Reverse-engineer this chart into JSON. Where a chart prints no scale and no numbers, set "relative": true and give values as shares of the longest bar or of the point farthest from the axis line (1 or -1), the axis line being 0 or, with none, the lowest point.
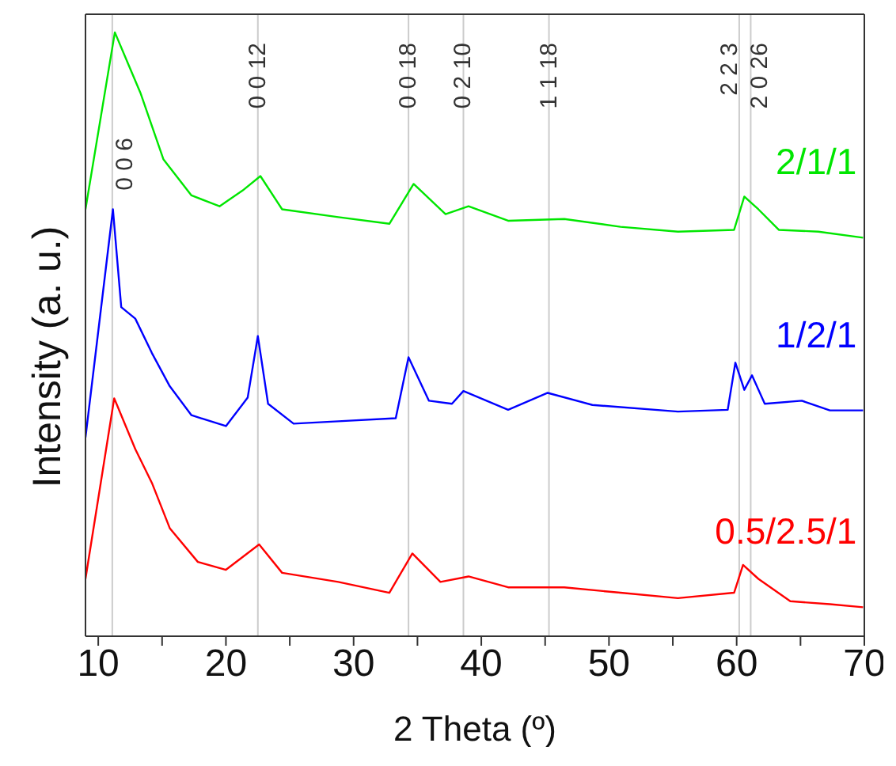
{
  "chart_data": {
    "type": "line",
    "relative": true,
    "xlabel": "2 Theta (º)",
    "ylabel": "Intensity (a. u.)",
    "xlim": [
      9,
      70
    ],
    "xticks": [
      10,
      {
        "value": 15,
        "label": null
      },
      20,
      {
        "value": 25,
        "label": null
      },
      30,
      {
        "value": 35,
        "label": null
      },
      40,
      {
        "value": 45,
        "label": null
      },
      50,
      {
        "value": 55,
        "label": null
      },
      60,
      {
        "value": 65,
        "label": null
      },
      70
    ],
    "ref_lines": [
      {
        "axis": "x",
        "value": 11.1,
        "color": "#cccccc"
      },
      {
        "axis": "x",
        "value": 22.5,
        "color": "#cccccc"
      },
      {
        "axis": "x",
        "value": 34.3,
        "color": "#cccccc"
      },
      {
        "axis": "x",
        "value": 38.6,
        "color": "#cccccc"
      },
      {
        "axis": "x",
        "value": 45.3,
        "color": "#cccccc"
      },
      {
        "axis": "x",
        "value": 60.2,
        "color": "#cccccc"
      },
      {
        "axis": "x",
        "value": 61.1,
        "color": "#cccccc"
      }
    ],
    "annotations": [
      {
        "text": "0 0 6",
        "x": 11.1
      },
      {
        "text": "0 0 12",
        "x": 22.5
      },
      {
        "text": "0 0 18",
        "x": 34.3
      },
      {
        "text": "0 2 10",
        "x": 38.6
      },
      {
        "text": "1 1 18",
        "x": 45.3
      },
      {
        "text": "2 2 3",
        "x": 60.2
      },
      {
        "text": "2 0 26",
        "x": 61.1
      }
    ],
    "series": [
      {
        "name": "2/1/1",
        "color": "#00e600",
        "x": [
          9,
          11.3,
          12.5,
          13.3,
          15.1,
          17.3,
          19.5,
          21.3,
          22.7,
          24.4,
          28.8,
          32.8,
          34.7,
          37.2,
          39,
          42.1,
          46.5,
          50.9,
          55.4,
          59.8,
          60.6,
          61.7,
          63.3,
          66.4,
          69.9
        ],
        "values": [
          0.707,
          1,
          0.94,
          0.9,
          0.79,
          0.73,
          0.712,
          0.738,
          0.762,
          0.707,
          0.694,
          0.683,
          0.749,
          0.699,
          0.712,
          0.688,
          0.691,
          0.678,
          0.67,
          0.673,
          0.728,
          0.707,
          0.673,
          0.67,
          0.66
        ]
      },
      {
        "name": "1/2/1",
        "color": "#0000ff",
        "x": [
          9,
          11.15,
          11.8,
          12.9,
          14.2,
          15.6,
          17.3,
          20,
          21.7,
          22.5,
          23.3,
          25.3,
          28.8,
          33.3,
          34.3,
          35.9,
          37.7,
          38.6,
          42.1,
          45.2,
          48.7,
          55.4,
          59.3,
          59.9,
          60.6,
          61.2,
          62.2,
          65.1,
          67.3,
          69.9
        ],
        "values": [
          0.329,
          0.707,
          0.545,
          0.526,
          0.469,
          0.414,
          0.366,
          0.348,
          0.395,
          0.497,
          0.385,
          0.352,
          0.356,
          0.361,
          0.462,
          0.39,
          0.385,
          0.406,
          0.375,
          0.403,
          0.383,
          0.372,
          0.375,
          0.453,
          0.408,
          0.432,
          0.385,
          0.39,
          0.374,
          0.374
        ]
      },
      {
        "name": "0.5/2.5/1",
        "color": "#ff0000",
        "x": [
          9,
          11.25,
          12.9,
          14.2,
          15.6,
          17.8,
          20,
          22.6,
          24.4,
          28.8,
          32.8,
          34.6,
          36.8,
          39,
          42.1,
          46.5,
          50.9,
          55.4,
          59.8,
          60.5,
          61.7,
          64.2,
          67.3,
          69.9
        ],
        "values": [
          0.095,
          0.394,
          0.31,
          0.254,
          0.179,
          0.123,
          0.11,
          0.152,
          0.105,
          0.09,
          0.072,
          0.137,
          0.09,
          0.099,
          0.081,
          0.081,
          0.072,
          0.063,
          0.072,
          0.118,
          0.095,
          0.058,
          0.053,
          0.048
        ]
      }
    ]
  }
}
